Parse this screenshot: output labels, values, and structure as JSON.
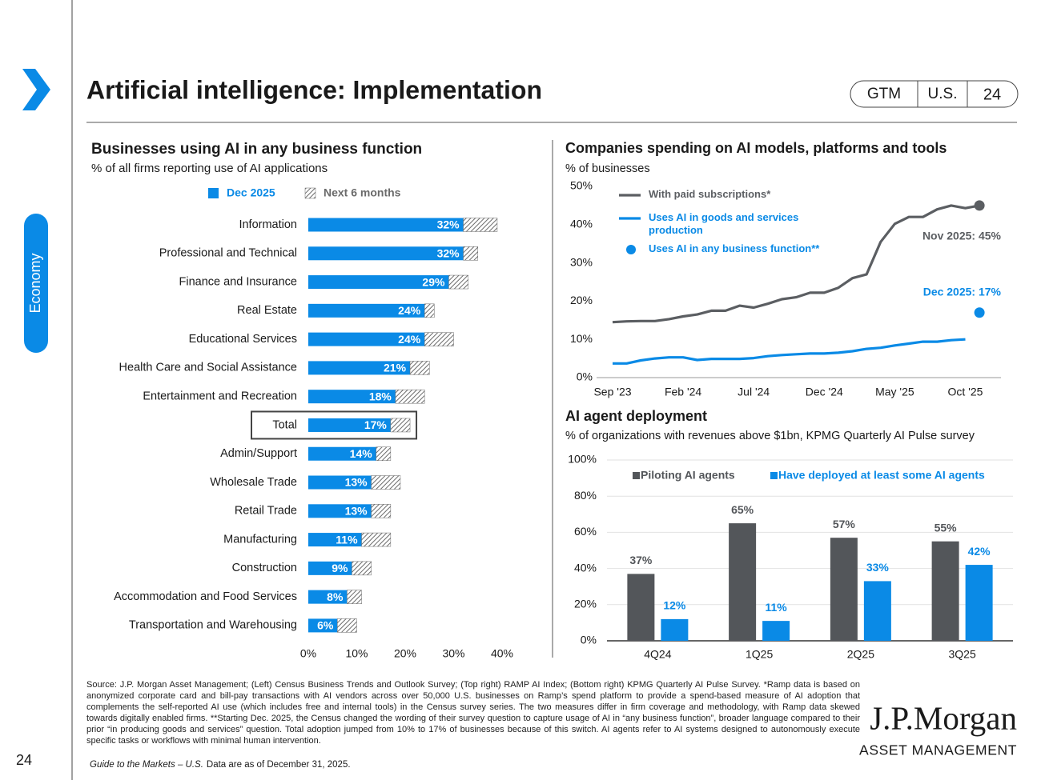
{
  "header": {
    "title": "Artificial intelligence: Implementation",
    "tabs": [
      "GTM",
      "U.S.",
      "24"
    ]
  },
  "sidebar": {
    "section": "Economy",
    "page_number": "24"
  },
  "chart_data": [
    {
      "type": "bar",
      "orientation": "horizontal",
      "stacked": true,
      "title": "Businesses using AI in any business function",
      "subtitle": "% of all firms reporting use of AI applications",
      "categories": [
        "Information",
        "Professional and Technical",
        "Finance and Insurance",
        "Real Estate",
        "Educational Services",
        "Health Care and Social Assistance",
        "Entertainment and Recreation",
        "Total",
        "Admin/Support",
        "Wholesale Trade",
        "Retail Trade",
        "Manufacturing",
        "Construction",
        "Accommodation and Food Services",
        "Transportation and Warehousing"
      ],
      "series": [
        {
          "name": "Dec 2025",
          "color": "#0a8ae6",
          "values": [
            32,
            32,
            29,
            24,
            24,
            21,
            18,
            17,
            14,
            13,
            13,
            11,
            9,
            8,
            6
          ],
          "value_labels": [
            "32%",
            "32%",
            "29%",
            "24%",
            "24%",
            "21%",
            "18%",
            "17%",
            "14%",
            "13%",
            "13%",
            "11%",
            "9%",
            "8%",
            "6%"
          ]
        },
        {
          "name": "Next 6 months",
          "color": "#6b6b6b",
          "pattern": "hatch",
          "values": [
            7,
            3,
            4,
            2,
            6,
            4,
            6,
            4,
            3,
            6,
            4,
            6,
            4,
            3,
            4
          ]
        }
      ],
      "highlight": "Total",
      "xlim": [
        0,
        40
      ],
      "xticks": [
        {
          "value": 0,
          "label": "0%"
        },
        {
          "value": 10,
          "label": "10%"
        },
        {
          "value": 20,
          "label": "20%"
        },
        {
          "value": 30,
          "label": "30%"
        },
        {
          "value": 40,
          "label": "40%"
        }
      ]
    },
    {
      "type": "line",
      "title": "Companies spending on AI models, platforms and tools",
      "subtitle": "% of businesses",
      "x": [
        "Sep '23",
        "Oct '23",
        "Nov '23",
        "Dec '23",
        "Jan '24",
        "Feb '24",
        "Mar '24",
        "Apr '24",
        "May '24",
        "Jun '24",
        "Jul '24",
        "Aug '24",
        "Sep '24",
        "Oct '24",
        "Nov '24",
        "Dec '24",
        "Jan '25",
        "Feb '25",
        "Mar '25",
        "Apr '25",
        "May '25",
        "Jun '25",
        "Jul '25",
        "Aug '25",
        "Sep '25",
        "Oct '25",
        "Nov '25"
      ],
      "xticks": [
        "Sep '23",
        "Feb '24",
        "Jul '24",
        "Dec '24",
        "May '25",
        "Oct '25"
      ],
      "series": [
        {
          "name": "With paid subscriptions*",
          "color": "#5b5e62",
          "end_marker": true,
          "values": [
            14.5,
            14.7,
            14.8,
            14.8,
            15.3,
            16,
            16.5,
            17.5,
            17.5,
            18.8,
            18.3,
            19.3,
            20.5,
            21,
            22.2,
            22.2,
            23.5,
            26,
            27,
            35.5,
            40.2,
            42,
            42,
            44,
            45,
            44.3,
            45
          ]
        },
        {
          "name": "Uses AI in goods and services production",
          "color": "#0a8ae6",
          "values": [
            3.7,
            3.7,
            4.5,
            5,
            5.3,
            5.3,
            4.6,
            4.9,
            4.9,
            4.9,
            5.1,
            5.6,
            5.9,
            6.1,
            6.3,
            6.3,
            6.5,
            6.9,
            7.5,
            7.8,
            8.4,
            8.9,
            9.4,
            9.4,
            9.8,
            10,
            null
          ]
        },
        {
          "name": "Uses AI in any business function**",
          "color": "#0a8ae6",
          "marker": "dot",
          "values": [
            null,
            null,
            null,
            null,
            null,
            null,
            null,
            null,
            null,
            null,
            null,
            null,
            null,
            null,
            null,
            null,
            null,
            null,
            null,
            null,
            null,
            null,
            null,
            null,
            null,
            null,
            17
          ]
        }
      ],
      "annotations": [
        "Nov 2025: 45%",
        "Dec 2025: 17%"
      ],
      "ylim": [
        0,
        50
      ],
      "yticks": [
        {
          "value": 0,
          "label": "0%"
        },
        {
          "value": 10,
          "label": "10%"
        },
        {
          "value": 20,
          "label": "20%"
        },
        {
          "value": 30,
          "label": "30%"
        },
        {
          "value": 40,
          "label": "40%"
        },
        {
          "value": 50,
          "label": "50%"
        }
      ]
    },
    {
      "type": "bar",
      "title": "AI agent deployment",
      "subtitle": "% of organizations with revenues above $1bn, KPMG Quarterly AI Pulse survey",
      "categories": [
        "4Q24",
        "1Q25",
        "2Q25",
        "3Q25"
      ],
      "series": [
        {
          "name": "Piloting AI agents",
          "color": "#53565a",
          "values": [
            37,
            65,
            57,
            55
          ],
          "value_labels": [
            "37%",
            "65%",
            "57%",
            "55%"
          ]
        },
        {
          "name": "Have deployed at least some AI agents",
          "color": "#0a8ae6",
          "values": [
            12,
            11,
            33,
            42
          ],
          "value_labels": [
            "12%",
            "11%",
            "33%",
            "42%"
          ]
        }
      ],
      "ylim": [
        0,
        100
      ],
      "yticks": [
        {
          "value": 0,
          "label": "0%"
        },
        {
          "value": 20,
          "label": "20%"
        },
        {
          "value": 40,
          "label": "40%"
        },
        {
          "value": 60,
          "label": "60%"
        },
        {
          "value": 80,
          "label": "80%"
        },
        {
          "value": 100,
          "label": "100%"
        }
      ],
      "grid": true
    }
  ],
  "footer": {
    "source": "Source: J.P. Morgan Asset Management; (Left) Census Business Trends and Outlook Survey; (Top right) RAMP AI Index; (Bottom right) KPMG Quarterly AI Pulse Survey. *Ramp data is based on anonymized corporate card and bill-pay transactions with AI vendors across over 50,000 U.S. businesses on Ramp’s spend platform to provide a spend-based measure of AI adoption that complements the self-reported AI use (which includes free and internal tools) in the Census survey series. The two measures differ in firm coverage and methodology, with Ramp data skewed towards digitally enabled firms. **Starting Dec. 2025, the Census changed the wording of their survey question to capture usage of AI in “any business function”, broader language compared to their prior “in producing goods and services” question. Total adoption jumped from 10% to 17% of businesses because of this switch. AI agents refer to AI systems designed to autonomously execute specific tasks or workflows with minimal human intervention.",
    "guide": "Guide to the Markets – U.S.",
    "date_note": "Data are as of December 31, 2025.",
    "logo": "J.P.Morgan",
    "logo_sub": "ASSET MANAGEMENT"
  }
}
